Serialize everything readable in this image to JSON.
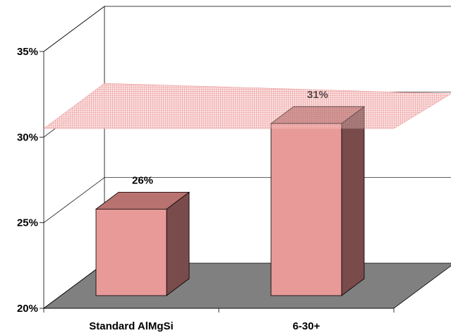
{
  "chart_data": {
    "type": "bar",
    "title": "",
    "xlabel": "",
    "ylabel": "",
    "categories": [
      "Standard AlMgSi",
      "6-30+"
    ],
    "values": [
      26,
      31
    ],
    "data_labels": [
      "26%",
      "31%"
    ],
    "ylim": [
      20,
      35
    ],
    "yticks": [
      20,
      25,
      30,
      35
    ],
    "ytick_labels": [
      "20%",
      "25%",
      "30%",
      "35%"
    ],
    "grid": true,
    "three_d": true,
    "reference_band": {
      "from": 29.5,
      "to": 31.5
    },
    "colors": {
      "bar_front": "#e89a98",
      "bar_top": "#b87270",
      "bar_side": "#7a4b4b",
      "floor": "#808080",
      "band": "#f6bfc0",
      "band_line": "#e98c8c"
    }
  }
}
